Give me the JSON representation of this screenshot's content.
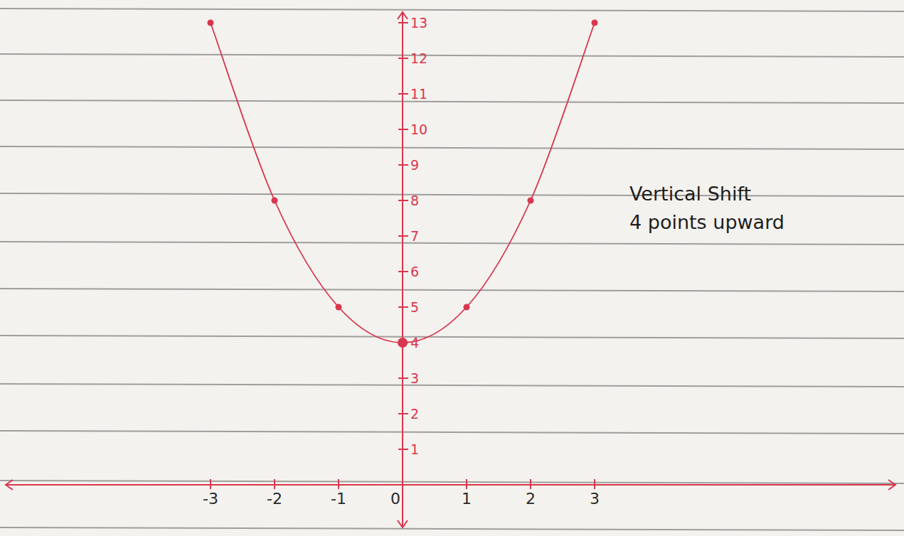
{
  "chart_data": {
    "type": "line",
    "x": [
      -3,
      -2,
      -1,
      0,
      1,
      2,
      3
    ],
    "values": [
      13,
      8,
      5,
      4,
      5,
      8,
      13
    ],
    "color": "#d9364f",
    "marker": "circle",
    "xlim": [
      -6.2,
      7.7
    ],
    "ylim": [
      -1.2,
      13.3
    ],
    "xticks": [
      -3,
      -2,
      -1,
      0,
      1,
      2,
      3
    ],
    "yticks": [
      1,
      2,
      3,
      4,
      5,
      6,
      7,
      8,
      9,
      10,
      11,
      12,
      13
    ],
    "annotations": [
      "Vertical Shift",
      "4 points upward"
    ]
  }
}
